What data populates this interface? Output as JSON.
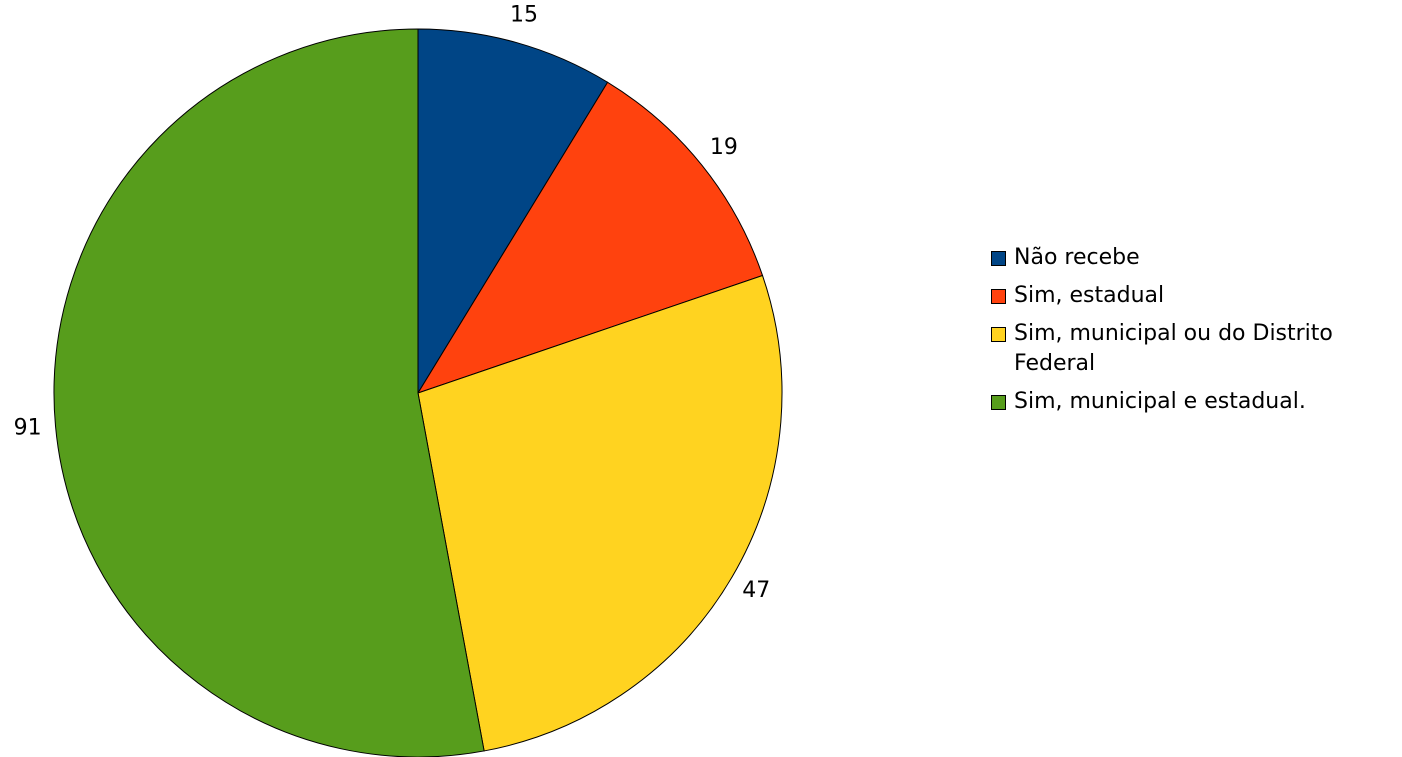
{
  "chart_data": {
    "type": "pie",
    "categories": [
      "Não recebe",
      "Sim, estadual",
      "Sim, municipal ou do Distrito Federal",
      "Sim, municipal e estadual."
    ],
    "values": [
      15,
      19,
      47,
      91
    ],
    "colors": [
      "#004586",
      "#ff420e",
      "#ffd320",
      "#579d1c"
    ],
    "legend": "right"
  }
}
